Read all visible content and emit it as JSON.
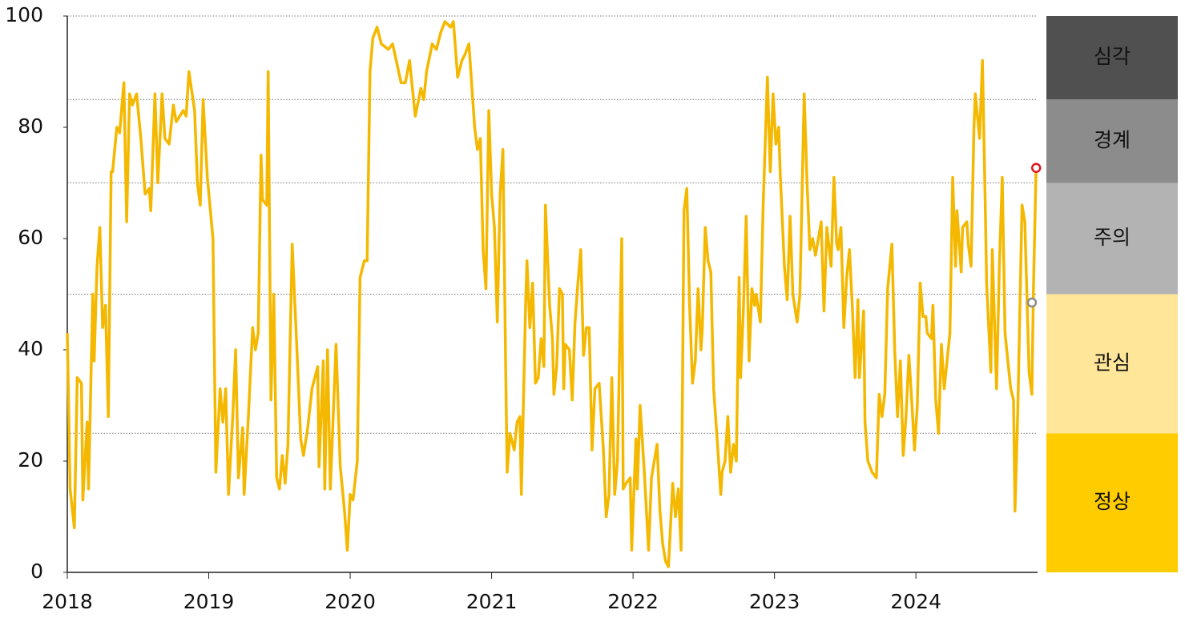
{
  "chart_data": {
    "type": "line",
    "xlim": [
      2018,
      2024.86
    ],
    "ylim": [
      0,
      100
    ],
    "xticks": [
      2018,
      2019,
      2020,
      2021,
      2022,
      2023,
      2024
    ],
    "yticks": [
      0,
      20,
      40,
      60,
      80,
      100
    ],
    "series": [
      {
        "color": "#f5b800",
        "x": [
          2018.0,
          2018.02,
          2018.05,
          2018.07,
          2018.1,
          2018.11,
          2018.14,
          2018.15,
          2018.18,
          2018.19,
          2018.21,
          2018.23,
          2018.25,
          2018.27,
          2018.29,
          2018.31,
          2018.32,
          2018.35,
          2018.37,
          2018.4,
          2018.42,
          2018.44,
          2018.46,
          2018.49,
          2018.52,
          2018.55,
          2018.58,
          2018.59,
          2018.62,
          2018.64,
          2018.67,
          2018.69,
          2018.72,
          2018.75,
          2018.77,
          2018.82,
          2018.84,
          2018.86,
          2018.9,
          2018.92,
          2018.94,
          2018.96,
          2018.99,
          2019.03,
          2019.05,
          2019.08,
          2019.1,
          2019.12,
          2019.14,
          2019.17,
          2019.19,
          2019.21,
          2019.24,
          2019.25,
          2019.28,
          2019.31,
          2019.33,
          2019.35,
          2019.37,
          2019.38,
          2019.41,
          2019.42,
          2019.44,
          2019.46,
          2019.48,
          2019.5,
          2019.52,
          2019.54,
          2019.56,
          2019.59,
          2019.62,
          2019.65,
          2019.67,
          2019.7,
          2019.73,
          2019.77,
          2019.78,
          2019.81,
          2019.82,
          2019.84,
          2019.86,
          2019.9,
          2019.93,
          2019.96,
          2019.98,
          2020.0,
          2020.02,
          2020.05,
          2020.07,
          2020.1,
          2020.12,
          2020.14,
          2020.16,
          2020.19,
          2020.22,
          2020.27,
          2020.3,
          2020.36,
          2020.39,
          2020.42,
          2020.46,
          2020.5,
          2020.52,
          2020.54,
          2020.58,
          2020.61,
          2020.64,
          2020.67,
          2020.71,
          2020.73,
          2020.76,
          2020.79,
          2020.81,
          2020.84,
          2020.88,
          2020.9,
          2020.92,
          2020.94,
          2020.96,
          2020.98,
          2021.0,
          2021.02,
          2021.04,
          2021.06,
          2021.08,
          2021.1,
          2021.11,
          2021.13,
          2021.16,
          2021.18,
          2021.2,
          2021.21,
          2021.24,
          2021.25,
          2021.27,
          2021.29,
          2021.31,
          2021.33,
          2021.35,
          2021.37,
          2021.38,
          2021.41,
          2021.43,
          2021.44,
          2021.46,
          2021.48,
          2021.5,
          2021.51,
          2021.52,
          2021.55,
          2021.57,
          2021.59,
          2021.61,
          2021.63,
          2021.65,
          2021.67,
          2021.69,
          2021.71,
          2021.73,
          2021.76,
          2021.79,
          2021.81,
          2021.83,
          2021.85,
          2021.87,
          2021.89,
          2021.92,
          2021.93,
          2021.95,
          2021.98,
          2021.99,
          2022.02,
          2022.03,
          2022.05,
          2022.08,
          2022.11,
          2022.13,
          2022.15,
          2022.17,
          2022.19,
          2022.21,
          2022.23,
          2022.25,
          2022.28,
          2022.3,
          2022.32,
          2022.34,
          2022.36,
          2022.38,
          2022.4,
          2022.42,
          2022.44,
          2022.46,
          2022.48,
          2022.49,
          2022.51,
          2022.53,
          2022.55,
          2022.57,
          2022.6,
          2022.62,
          2022.63,
          2022.65,
          2022.67,
          2022.69,
          2022.71,
          2022.73,
          2022.75,
          2022.76,
          2022.78,
          2022.8,
          2022.82,
          2022.84,
          2022.86,
          2022.87,
          2022.9,
          2022.92,
          2022.95,
          2022.97,
          2022.99,
          2023.01,
          2023.03,
          2023.04,
          2023.07,
          2023.09,
          2023.11,
          2023.13,
          2023.16,
          2023.18,
          2023.21,
          2023.23,
          2023.25,
          2023.27,
          2023.29,
          2023.31,
          2023.33,
          2023.35,
          2023.37,
          2023.4,
          2023.42,
          2023.44,
          2023.45,
          2023.47,
          2023.49,
          2023.51,
          2023.53,
          2023.55,
          2023.57,
          2023.59,
          2023.6,
          2023.63,
          2023.64,
          2023.66,
          2023.69,
          2023.72,
          2023.74,
          2023.76,
          2023.78,
          2023.8,
          2023.83,
          2023.85,
          2023.87,
          2023.89,
          2023.91,
          2023.93,
          2023.95,
          2023.97,
          2023.99,
          2024.01,
          2024.03,
          2024.05,
          2024.07,
          2024.08,
          2024.11,
          2024.12,
          2024.14,
          2024.16,
          2024.18,
          2024.2,
          2024.22,
          2024.24,
          2024.26,
          2024.28,
          2024.29,
          2024.32,
          2024.33,
          2024.36,
          2024.37,
          2024.39,
          2024.41,
          2024.42,
          2024.45,
          2024.47,
          2024.49,
          2024.5,
          2024.53,
          2024.54,
          2024.57,
          2024.59,
          2024.61,
          2024.63,
          2024.65,
          2024.67,
          2024.69,
          2024.7,
          2024.72,
          2024.75,
          2024.77,
          2024.8,
          2024.82,
          2024.83,
          2024.85
        ],
        "values": [
          43,
          15,
          8,
          35,
          34,
          13,
          27,
          15,
          50,
          38,
          55,
          62,
          44,
          48,
          28,
          72,
          72,
          80,
          79,
          88,
          63,
          86,
          84,
          86,
          78,
          68,
          69,
          65,
          86,
          70,
          86,
          78,
          77,
          84,
          81,
          83,
          82,
          90,
          83,
          70,
          66,
          85,
          71,
          60,
          18,
          33,
          27,
          33,
          14,
          28,
          40,
          17,
          26,
          14,
          28,
          44,
          40,
          43,
          75,
          67,
          66,
          90,
          31,
          50,
          17,
          15,
          21,
          16,
          23,
          59,
          42,
          24,
          21,
          26,
          33,
          37,
          19,
          38,
          15,
          40,
          15,
          41,
          19,
          11,
          4,
          14,
          13,
          20,
          53,
          56,
          56,
          90,
          96,
          98,
          95,
          94,
          95,
          88,
          88,
          92,
          82,
          87,
          85,
          90,
          95,
          94,
          97,
          99,
          98,
          99,
          89,
          92,
          93,
          95,
          80,
          76,
          78,
          58,
          51,
          83,
          68,
          62,
          45,
          68,
          76,
          36,
          18,
          25,
          22,
          27,
          28,
          14,
          48,
          56,
          44,
          52,
          34,
          35,
          42,
          37,
          66,
          48,
          42,
          32,
          37,
          51,
          50,
          33,
          41,
          40,
          31,
          45,
          52,
          58,
          39,
          44,
          44,
          22,
          33,
          34,
          22,
          10,
          14,
          35,
          14,
          20,
          60,
          15,
          16,
          17,
          4,
          24,
          15,
          30,
          18,
          4,
          17,
          20,
          23,
          11,
          5,
          2,
          1,
          16,
          10,
          15,
          4,
          65,
          69,
          48,
          34,
          38,
          51,
          40,
          44,
          62,
          56,
          54,
          33,
          22,
          14,
          18,
          20,
          28,
          18,
          23,
          20,
          53,
          35,
          47,
          64,
          38,
          51,
          48,
          50,
          45,
          66,
          89,
          72,
          86,
          77,
          80,
          72,
          55,
          49,
          64,
          50,
          45,
          50,
          86,
          70,
          58,
          60,
          57,
          60,
          63,
          47,
          62,
          55,
          71,
          59,
          58,
          62,
          44,
          53,
          58,
          48,
          35,
          49,
          35,
          47,
          27,
          20,
          18,
          17,
          32,
          28,
          32,
          51,
          59,
          40,
          28,
          38,
          21,
          28,
          39,
          31,
          22,
          30,
          52,
          46,
          46,
          43,
          42,
          48,
          31,
          25,
          41,
          33,
          38,
          43,
          71,
          55,
          65,
          54,
          62,
          63,
          59,
          55,
          80,
          86,
          78,
          92,
          66,
          52,
          36,
          58,
          33,
          55,
          71,
          43,
          38,
          33,
          31,
          11,
          29,
          66,
          63,
          36,
          32,
          50,
          73
        ]
      }
    ],
    "markers": [
      {
        "x": 2024.85,
        "y": 72.7,
        "color": "#e0161b"
      },
      {
        "x": 2024.82,
        "y": 48.5,
        "color": "#8c8c8c"
      }
    ],
    "bands": [
      {
        "label": "정상",
        "from": 0,
        "to": 25,
        "color": "#ffcc00"
      },
      {
        "label": "관심",
        "from": 25,
        "to": 50,
        "color": "#ffe699"
      },
      {
        "label": "주의",
        "from": 50,
        "to": 70,
        "color": "#b3b3b3"
      },
      {
        "label": "경계",
        "from": 70,
        "to": 85,
        "color": "#8c8c8c"
      },
      {
        "label": "심각",
        "from": 85,
        "to": 100,
        "color": "#505050"
      }
    ]
  }
}
